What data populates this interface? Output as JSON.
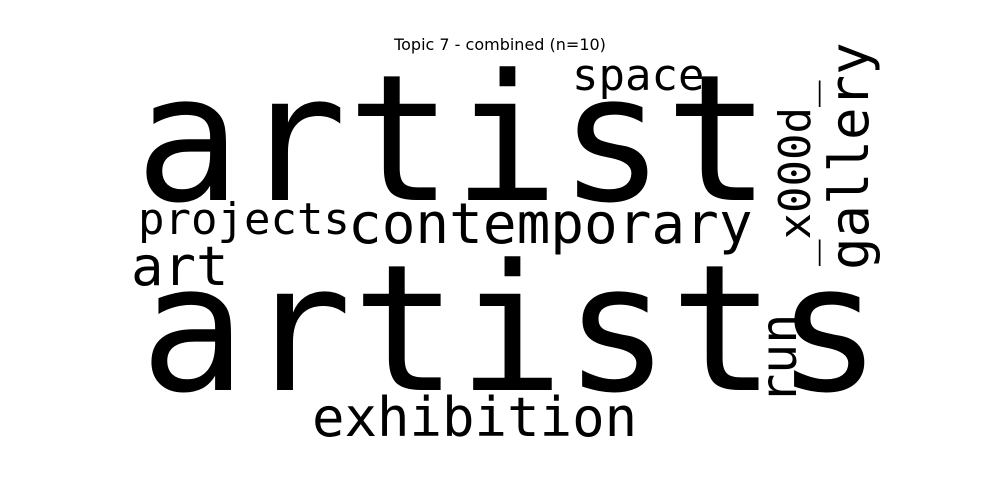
{
  "title": "Topic 7 - combined (n=10)",
  "words": {
    "artist": {
      "text": "artist",
      "color": "#33638d"
    },
    "artists": {
      "text": "artists",
      "color": "#21a585"
    },
    "contemporary": {
      "text": "contemporary",
      "color": "#1f9a8a"
    },
    "projects": {
      "text": "projects",
      "color": "#2cb17e"
    },
    "art": {
      "text": "art",
      "color": "#277f8e"
    },
    "space": {
      "text": "space",
      "color": "#2d708e"
    },
    "x000d": {
      "text": "_x000d_",
      "color": "#2c728e"
    },
    "gallery": {
      "text": "gallery",
      "color": "#29af7f"
    },
    "run": {
      "text": "run",
      "color": "#3e4a89"
    },
    "exhibition": {
      "text": "exhibition",
      "color": "#4ac16d"
    }
  }
}
